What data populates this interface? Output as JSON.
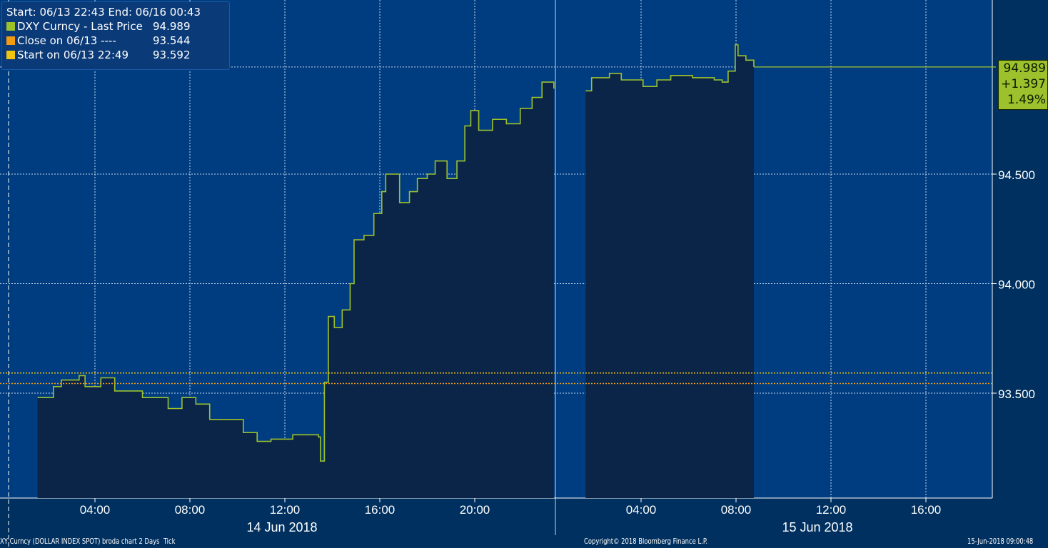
{
  "legend": {
    "header": "Start: 06/13 22:43 End: 06/16 00:43",
    "items": [
      {
        "label": "DXY Curncy - Last Price",
        "value": "94.989",
        "color": "#9dc12c"
      },
      {
        "label": "Close on 06/13 ----",
        "value": "93.544",
        "color": "#f39c12"
      },
      {
        "label": "Start on 06/13 22:49",
        "value": "93.592",
        "color": "#f1c40f"
      }
    ]
  },
  "badge": {
    "price": "94.989",
    "change": "+1.397",
    "pct": "1.49%"
  },
  "footer": {
    "left": "XY Curncy (DOLLAR INDEX SPOT) broda chart 2 Days  Tick",
    "center": "Copyright© 2018 Bloomberg Finance L.P.",
    "right": "15-Jun-2018 09:00:48"
  },
  "chart_data": {
    "type": "line",
    "ylim": [
      93.0,
      95.3
    ],
    "yticks": [
      "93.500",
      "94.000",
      "94.500"
    ],
    "ytick_values": [
      93.5,
      94.0,
      94.5
    ],
    "days": [
      {
        "label": "14 Jun 2018",
        "xticks": [
          "04:00",
          "08:00",
          "12:00",
          "16:00",
          "20:00"
        ]
      },
      {
        "label": "15 Jun 2018",
        "xticks": [
          "04:00",
          "08:00",
          "12:00",
          "16:00"
        ]
      }
    ],
    "grid": true,
    "reference_lines": [
      {
        "name": "Close on 06/13",
        "value": 93.544,
        "color": "#f39c12"
      },
      {
        "name": "Start on 06/13 22:49",
        "value": 93.592,
        "color": "#f1c40f"
      }
    ],
    "series": [
      {
        "name": "DXY Curncy - Last Price",
        "color": "#9dc12c",
        "segments": [
          {
            "day": 0,
            "points": [
              [
                "01:35",
                93.48
              ],
              [
                "02:15",
                93.53
              ],
              [
                "02:35",
                93.56
              ],
              [
                "03:20",
                93.58
              ],
              [
                "03:35",
                93.53
              ],
              [
                "04:15",
                93.57
              ],
              [
                "04:50",
                93.51
              ],
              [
                "06:00",
                93.48
              ],
              [
                "07:05",
                93.43
              ],
              [
                "07:40",
                93.48
              ],
              [
                "08:15",
                93.45
              ],
              [
                "08:50",
                93.38
              ],
              [
                "09:35",
                93.38
              ],
              [
                "10:15",
                93.32
              ],
              [
                "10:50",
                93.28
              ],
              [
                "11:25",
                93.29
              ],
              [
                "12:20",
                93.31
              ],
              [
                "13:25",
                93.3
              ],
              [
                "13:30",
                93.19
              ],
              [
                "13:40",
                93.55
              ],
              [
                "13:50",
                93.85
              ],
              [
                "14:05",
                93.8
              ],
              [
                "14:25",
                93.88
              ],
              [
                "14:45",
                94.0
              ],
              [
                "14:55",
                94.2
              ],
              [
                "15:20",
                94.22
              ],
              [
                "15:45",
                94.32
              ],
              [
                "16:05",
                94.42
              ],
              [
                "16:15",
                94.5
              ],
              [
                "16:50",
                94.37
              ],
              [
                "17:15",
                94.42
              ],
              [
                "17:35",
                94.48
              ],
              [
                "18:00",
                94.5
              ],
              [
                "18:20",
                94.56
              ],
              [
                "18:50",
                94.48
              ],
              [
                "19:15",
                94.56
              ],
              [
                "19:35",
                94.72
              ],
              [
                "19:50",
                94.79
              ],
              [
                "20:10",
                94.7
              ],
              [
                "20:45",
                94.75
              ],
              [
                "21:20",
                94.73
              ],
              [
                "21:55",
                94.8
              ],
              [
                "22:25",
                94.85
              ],
              [
                "22:50",
                94.92
              ],
              [
                "23:20",
                94.89
              ]
            ]
          },
          {
            "day": 1,
            "points": [
              [
                "01:40",
                94.88
              ],
              [
                "01:55",
                94.94
              ],
              [
                "02:40",
                94.96
              ],
              [
                "03:10",
                94.93
              ],
              [
                "04:05",
                94.9
              ],
              [
                "04:40",
                94.93
              ],
              [
                "05:15",
                94.95
              ],
              [
                "06:10",
                94.94
              ],
              [
                "07:05",
                94.93
              ],
              [
                "07:25",
                94.92
              ],
              [
                "07:40",
                94.97
              ],
              [
                "07:58",
                95.09
              ],
              [
                "08:05",
                95.04
              ],
              [
                "08:25",
                95.02
              ],
              [
                "08:45",
                94.989
              ]
            ]
          }
        ]
      }
    ]
  }
}
